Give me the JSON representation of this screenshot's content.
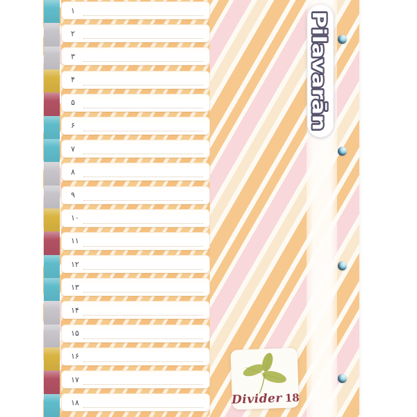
{
  "product": {
    "brand": "Pilavarān",
    "label": {
      "title": "Divider",
      "count": "18"
    },
    "index_rows": [
      {
        "number": "۱",
        "tab_color": "teal"
      },
      {
        "number": "۲",
        "tab_color": "gray"
      },
      {
        "number": "۳",
        "tab_color": "gray"
      },
      {
        "number": "۴",
        "tab_color": "yellow"
      },
      {
        "number": "۵",
        "tab_color": "maroon"
      },
      {
        "number": "۶",
        "tab_color": "teal"
      },
      {
        "number": "۷",
        "tab_color": "teal"
      },
      {
        "number": "۸",
        "tab_color": "gray"
      },
      {
        "number": "۹",
        "tab_color": "gray"
      },
      {
        "number": "۱۰",
        "tab_color": "yellow"
      },
      {
        "number": "۱۱",
        "tab_color": "maroon"
      },
      {
        "number": "۱۲",
        "tab_color": "teal"
      },
      {
        "number": "۱۳",
        "tab_color": "teal"
      },
      {
        "number": "۱۴",
        "tab_color": "gray"
      },
      {
        "number": "۱۵",
        "tab_color": "gray"
      },
      {
        "number": "۱۶",
        "tab_color": "yellow"
      },
      {
        "number": "۱۷",
        "tab_color": "maroon"
      },
      {
        "number": "۱۸",
        "tab_color": "teal"
      }
    ],
    "tab_palette": {
      "teal": "#5fbccb",
      "gray": "#c7c5ca",
      "yellow": "#d9b440",
      "maroon": "#b25164"
    },
    "eyelets": {
      "count": 4,
      "color": "#8ecfdd"
    },
    "stripe_colors": {
      "orange": "#f6c88e",
      "pink": "#f8d8da",
      "cream": "#f9e8cd",
      "white": "#fdfaf3"
    },
    "accent_colors": {
      "logo_outline": "#56526b",
      "label_text": "#8f3c49",
      "leaf_green": "#b2bc5e",
      "row_number": "#474754"
    },
    "icons": {
      "leaf": "leaf-icon",
      "eyelet": "eyelet-grommet"
    }
  }
}
